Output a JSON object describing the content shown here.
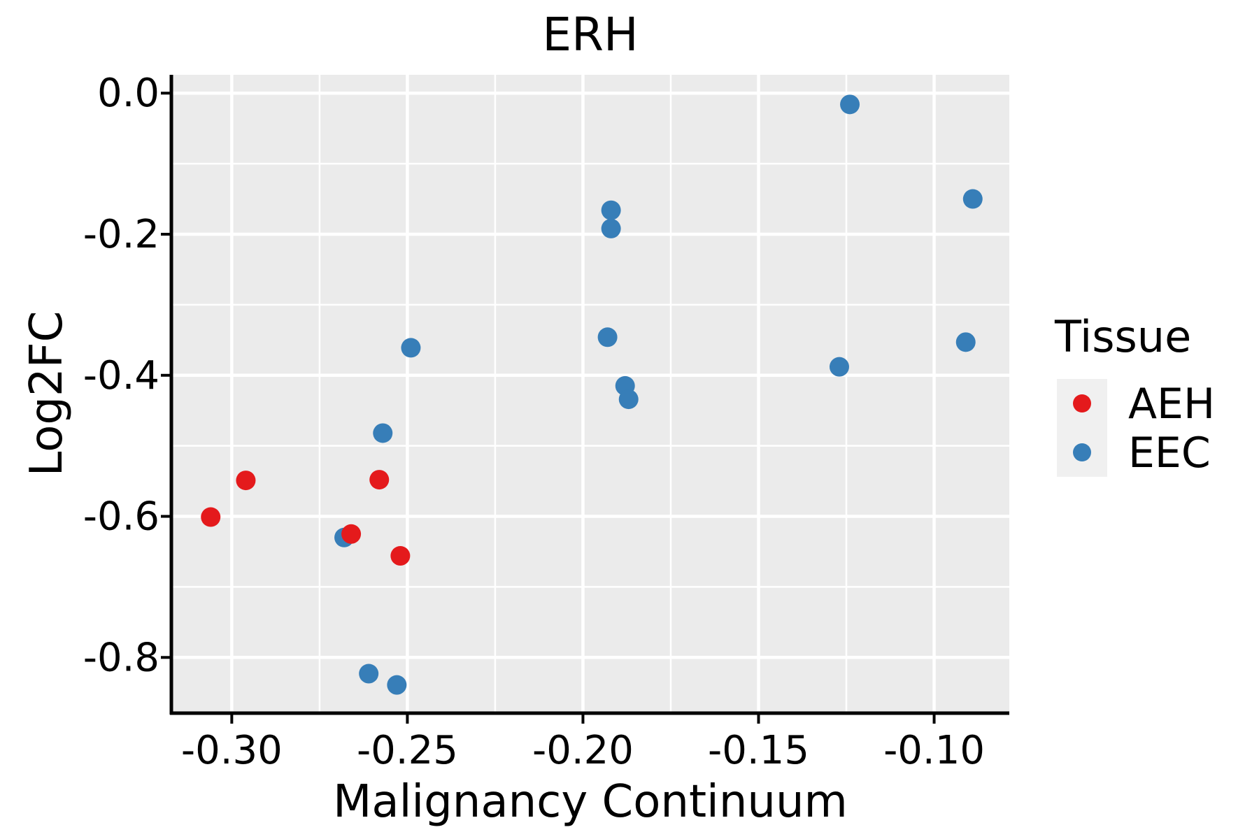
{
  "chart_data": {
    "type": "scatter",
    "title": "ERH",
    "xlabel": "Malignancy Continuum",
    "ylabel": "Log2FC",
    "xlim": [
      -0.3172,
      -0.0786
    ],
    "ylim": [
      -0.879,
      0.026
    ],
    "grid": "major and minor white gridlines on gray panel",
    "panel_bg": "#ebebeb",
    "grid_color": "#ffffff",
    "axis_color": "#000000",
    "x_ticks": [
      {
        "value": -0.3,
        "label": "-0.30"
      },
      {
        "value": -0.25,
        "label": "-0.25"
      },
      {
        "value": -0.2,
        "label": "-0.20"
      },
      {
        "value": -0.15,
        "label": "-0.15"
      },
      {
        "value": -0.1,
        "label": "-0.10"
      }
    ],
    "y_ticks": [
      {
        "value": 0.0,
        "label": "0.0"
      },
      {
        "value": -0.2,
        "label": "-0.2"
      },
      {
        "value": -0.4,
        "label": "-0.4"
      },
      {
        "value": -0.6,
        "label": "-0.6"
      },
      {
        "value": -0.8,
        "label": "-0.8"
      }
    ],
    "x_minor": [
      -0.275,
      -0.225,
      -0.175,
      -0.125
    ],
    "y_minor": [
      -0.1,
      -0.3,
      -0.5,
      -0.7
    ],
    "legend": {
      "title": "Tissue",
      "position": "right",
      "entries": [
        {
          "label": "AEH",
          "color": "#e41a1c"
        },
        {
          "label": "EEC",
          "color": "#377eb8"
        }
      ]
    },
    "series": [
      {
        "name": "AEH",
        "color": "#e41a1c",
        "points": [
          [
            -0.296,
            -0.549
          ],
          [
            -0.306,
            -0.601
          ],
          [
            -0.258,
            -0.548
          ],
          [
            -0.266,
            -0.625
          ],
          [
            -0.252,
            -0.656
          ]
        ]
      },
      {
        "name": "EEC",
        "color": "#377eb8",
        "points": [
          [
            -0.124,
            -0.016
          ],
          [
            -0.089,
            -0.15
          ],
          [
            -0.091,
            -0.353
          ],
          [
            -0.192,
            -0.166
          ],
          [
            -0.192,
            -0.192
          ],
          [
            -0.193,
            -0.346
          ],
          [
            -0.188,
            -0.415
          ],
          [
            -0.187,
            -0.434
          ],
          [
            -0.249,
            -0.361
          ],
          [
            -0.257,
            -0.482
          ],
          [
            -0.268,
            -0.63
          ],
          [
            -0.261,
            -0.823
          ],
          [
            -0.253,
            -0.839
          ],
          [
            -0.127,
            -0.388
          ]
        ]
      }
    ]
  }
}
